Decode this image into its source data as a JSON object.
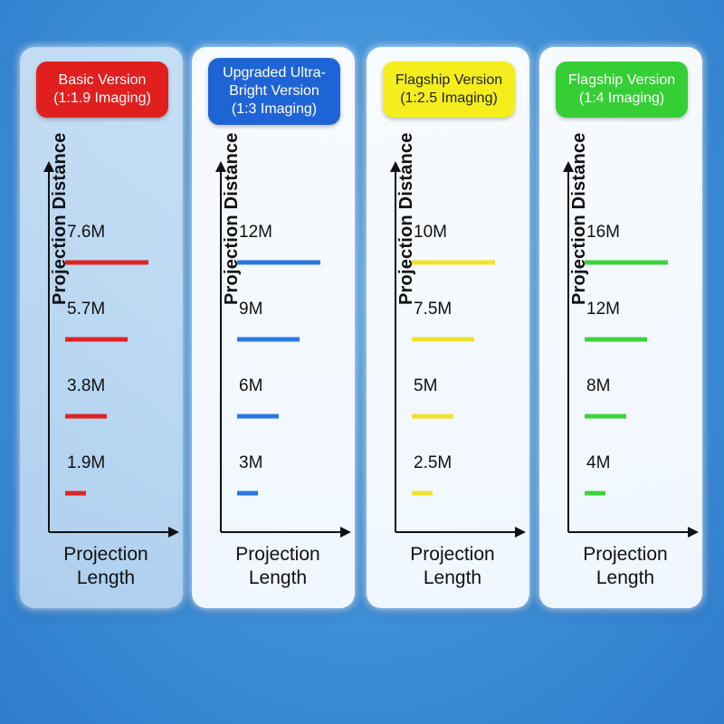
{
  "colors": {
    "red": "#e02222",
    "blue": "#2a78e4",
    "yellow": "#f0e22a",
    "green": "#3cd33c"
  },
  "chart_data": [
    {
      "type": "bar",
      "title": "Basic Version\n(1:1.9 Imaging)",
      "ylabel": "Projection Distance",
      "xlabel": "Projection\nLength",
      "color": "#e02222",
      "categories": [
        "1.9M",
        "3.8M",
        "5.7M",
        "7.6M"
      ],
      "values": [
        1.9,
        3.8,
        5.7,
        7.6
      ],
      "scale_max": 7.6
    },
    {
      "type": "bar",
      "title": "Upgraded Ultra-\nBright Version\n(1:3 Imaging)",
      "ylabel": "Projection Distance",
      "xlabel": "Projection\nLength",
      "color": "#2a78e4",
      "categories": [
        "3M",
        "6M",
        "9M",
        "12M"
      ],
      "values": [
        3,
        6,
        9,
        12
      ],
      "scale_max": 12
    },
    {
      "type": "bar",
      "title": "Flagship Version\n(1:2.5 Imaging)",
      "ylabel": "Projection Distance",
      "xlabel": "Projection\nLength",
      "color": "#f0e22a",
      "categories": [
        "2.5M",
        "5M",
        "7.5M",
        "10M"
      ],
      "values": [
        2.5,
        5,
        7.5,
        10
      ],
      "scale_max": 10
    },
    {
      "type": "bar",
      "title": "Flagship Version\n(1:4 Imaging)",
      "ylabel": "Projection Distance",
      "xlabel": "Projection\nLength",
      "color": "#3cd33c",
      "categories": [
        "4M",
        "8M",
        "12M",
        "16M"
      ],
      "values": [
        4,
        8,
        12,
        16
      ],
      "scale_max": 16
    }
  ]
}
